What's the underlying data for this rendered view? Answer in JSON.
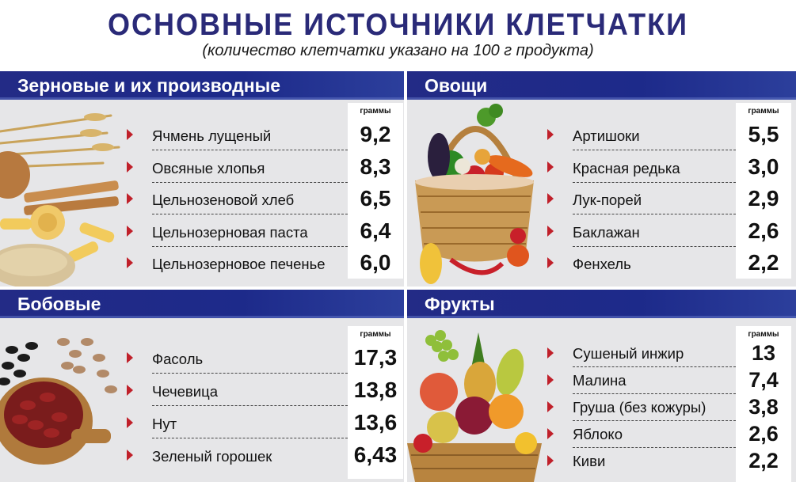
{
  "title": "ОСНОВНЫЕ ИСТОЧНИКИ КЛЕТЧАТКИ",
  "subtitle": "(количество клетчатки указано на 100 г продукта)",
  "grams_label": "граммы",
  "sections": [
    {
      "title": "Зерновые и их производные",
      "items": [
        {
          "name": "Ячмень лущеный",
          "value": "9,2"
        },
        {
          "name": "Овсяные хлопья",
          "value": "8,3"
        },
        {
          "name": "Цельнозеновой хлеб",
          "value": "6,5"
        },
        {
          "name": "Цельнозерновая паста",
          "value": "6,4"
        },
        {
          "name": "Цельнозерновое печенье",
          "value": "6,0"
        }
      ]
    },
    {
      "title": "Овощи",
      "items": [
        {
          "name": "Артишоки",
          "value": "5,5"
        },
        {
          "name": "Красная редька",
          "value": "3,0"
        },
        {
          "name": "Лук-порей",
          "value": "2,9"
        },
        {
          "name": "Баклажан",
          "value": "2,6"
        },
        {
          "name": "Фенхель",
          "value": "2,2"
        }
      ]
    },
    {
      "title": "Бобовые",
      "items": [
        {
          "name": "Фасоль",
          "value": "17,3"
        },
        {
          "name": "Чечевица",
          "value": "13,8"
        },
        {
          "name": "Нут",
          "value": "13,6"
        },
        {
          "name": "Зеленый горошек",
          "value": "6,43"
        }
      ]
    },
    {
      "title": "Фрукты",
      "items": [
        {
          "name": "Сушеный инжир",
          "value": "13"
        },
        {
          "name": "Малина",
          "value": "7,4"
        },
        {
          "name": "Груша (без кожуры)",
          "value": "3,8"
        },
        {
          "name": "Яблоко",
          "value": "2,6"
        },
        {
          "name": "Киви",
          "value": "2,2"
        }
      ]
    }
  ],
  "colors": {
    "title": "#2a2a78",
    "header_bg": "#1d2a8a",
    "bullet": "#c0202a",
    "panel_bg": "#e6e6e8"
  },
  "icons": [
    "grains-image",
    "vegetable-basket-image",
    "beans-image",
    "fruit-basket-image"
  ]
}
